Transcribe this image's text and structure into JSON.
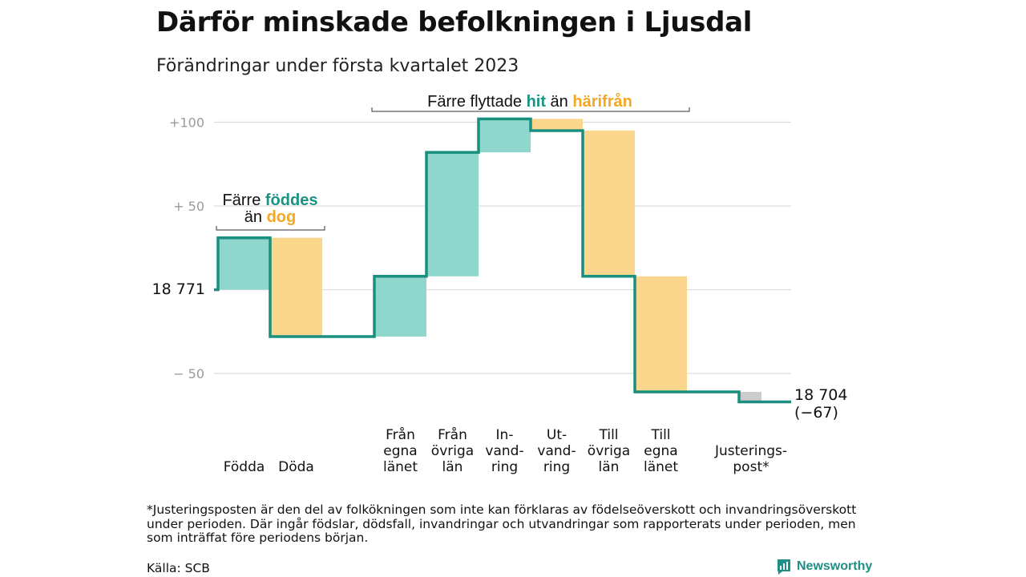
{
  "title": "Därför minskade befolkningen i Ljusdal",
  "subtitle": "Förändringar under första kvartalet 2023",
  "colors": {
    "increase": "#8fd6cc",
    "decrease": "#fbd68d",
    "adjustment": "#cccccc",
    "step_line": "#1a8f80",
    "accent_teal": "#1a9385",
    "accent_orange": "#f5a623",
    "grid": "#dddddd"
  },
  "chart_data": {
    "type": "bar",
    "variant": "waterfall",
    "title": "Därför minskade befolkningen i Ljusdal",
    "subtitle": "Förändringar under första kvartalet 2023",
    "start_value": 18771,
    "end_value": 18704,
    "total_change": -67,
    "start_label": "18 771",
    "end_label": "18 704",
    "end_change_label": "(−67)",
    "ylim": [
      -70,
      104
    ],
    "yticks": [
      {
        "value": 100,
        "label": "+100"
      },
      {
        "value": 50,
        "label": "+ 50"
      },
      {
        "value": -50,
        "label": "− 50"
      }
    ],
    "grid": true,
    "steps": [
      {
        "category": "Födda",
        "lines": [
          "Födda"
        ],
        "change": 31,
        "kind": "increase"
      },
      {
        "category": "Döda",
        "lines": [
          "Döda"
        ],
        "change": -59,
        "kind": "decrease"
      },
      {
        "category": "Från egna länet",
        "lines": [
          "Från",
          "egna",
          "länet"
        ],
        "change": 36,
        "kind": "increase"
      },
      {
        "category": "Från övriga län",
        "lines": [
          "Från",
          "övriga",
          "län"
        ],
        "change": 74,
        "kind": "increase"
      },
      {
        "category": "Invandring",
        "lines": [
          "In-",
          "vand-",
          "ring"
        ],
        "change": 20,
        "kind": "increase"
      },
      {
        "category": "Utvandring",
        "lines": [
          "Ut-",
          "vand-",
          "ring"
        ],
        "change": -7,
        "kind": "decrease"
      },
      {
        "category": "Till övriga län",
        "lines": [
          "Till",
          "övriga",
          "län"
        ],
        "change": -87,
        "kind": "decrease"
      },
      {
        "category": "Till egna länet",
        "lines": [
          "Till",
          "egna",
          "länet"
        ],
        "change": -69,
        "kind": "decrease"
      },
      {
        "category": "Justeringspost*",
        "lines": [
          "Justerings-",
          "post*"
        ],
        "change": -6,
        "kind": "adjustment"
      }
    ],
    "annotations": [
      {
        "id": "births",
        "lines": [
          [
            {
              "text": "Färre ",
              "style": "plain"
            },
            {
              "text": "föddes",
              "style": "teal"
            }
          ],
          [
            {
              "text": "än ",
              "style": "plain"
            },
            {
              "text": "dog",
              "style": "orange"
            }
          ]
        ]
      },
      {
        "id": "moves",
        "lines": [
          [
            {
              "text": "Färre flyttade ",
              "style": "plain"
            },
            {
              "text": "hit",
              "style": "teal"
            },
            {
              "text": " än ",
              "style": "plain"
            },
            {
              "text": "härifrån",
              "style": "orange"
            }
          ]
        ]
      }
    ]
  },
  "footnote": "*Justeringsposten är den del av folkökningen som inte kan förklaras av födelseöverskott och invandringsöverskott under perioden. Där ingår födslar, dödsfall, invandringar och utvandringar som rapporterats under perioden, men som inträffat före periodens början.",
  "source": "Källa: SCB",
  "brand": {
    "name": "Newsworthy",
    "icon": "newsworthy-logo-icon"
  }
}
